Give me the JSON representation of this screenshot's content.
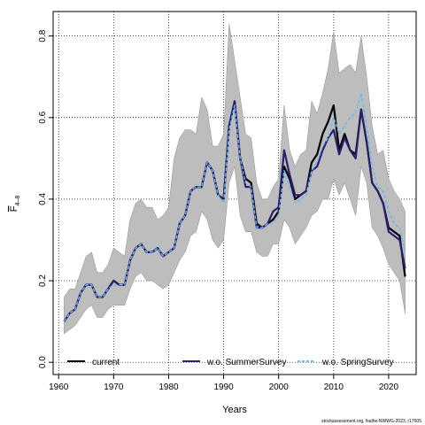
{
  "chart_data": {
    "type": "line",
    "title": "",
    "xlabel": "Years",
    "ylabel_main": "F",
    "ylabel_sub": "4–8",
    "xlim": [
      1959,
      2025
    ],
    "ylim": [
      -0.03,
      0.86
    ],
    "xticks": [
      1960,
      1970,
      1980,
      1990,
      2000,
      2010,
      2020
    ],
    "yticks": [
      0.0,
      0.2,
      0.4,
      0.6,
      0.8
    ],
    "ytick_labels": [
      "0.0",
      "0.2",
      "0.4",
      "0.6",
      "0.8"
    ],
    "grid": true,
    "legend_position": "bottom",
    "x": [
      1961,
      1962,
      1963,
      1964,
      1965,
      1966,
      1967,
      1968,
      1969,
      1970,
      1971,
      1972,
      1973,
      1974,
      1975,
      1976,
      1977,
      1978,
      1979,
      1980,
      1981,
      1982,
      1983,
      1984,
      1985,
      1986,
      1987,
      1988,
      1989,
      1990,
      1991,
      1992,
      1993,
      1994,
      1995,
      1996,
      1997,
      1998,
      1999,
      2000,
      2001,
      2002,
      2003,
      2004,
      2005,
      2006,
      2007,
      2008,
      2009,
      2010,
      2011,
      2012,
      2013,
      2014,
      2015,
      2016,
      2017,
      2018,
      2019,
      2020,
      2021,
      2022,
      2023
    ],
    "band": {
      "lower": [
        0.07,
        0.08,
        0.09,
        0.11,
        0.13,
        0.14,
        0.11,
        0.11,
        0.13,
        0.14,
        0.14,
        0.14,
        0.18,
        0.21,
        0.22,
        0.2,
        0.2,
        0.19,
        0.18,
        0.19,
        0.22,
        0.25,
        0.27,
        0.31,
        0.32,
        0.37,
        0.35,
        0.3,
        0.28,
        0.3,
        0.44,
        0.48,
        0.36,
        0.32,
        0.32,
        0.27,
        0.26,
        0.26,
        0.29,
        0.29,
        0.35,
        0.33,
        0.29,
        0.31,
        0.33,
        0.36,
        0.37,
        0.4,
        0.4,
        0.45,
        0.41,
        0.44,
        0.4,
        0.36,
        0.48,
        0.44,
        0.33,
        0.31,
        0.28,
        0.24,
        0.22,
        0.2,
        0.12
      ],
      "upper": [
        0.16,
        0.18,
        0.18,
        0.22,
        0.26,
        0.27,
        0.22,
        0.22,
        0.24,
        0.28,
        0.27,
        0.26,
        0.35,
        0.39,
        0.4,
        0.38,
        0.38,
        0.35,
        0.36,
        0.38,
        0.5,
        0.55,
        0.57,
        0.57,
        0.56,
        0.65,
        0.62,
        0.53,
        0.53,
        0.56,
        0.83,
        0.74,
        0.65,
        0.56,
        0.55,
        0.44,
        0.4,
        0.4,
        0.43,
        0.45,
        0.63,
        0.52,
        0.48,
        0.51,
        0.52,
        0.64,
        0.61,
        0.66,
        0.72,
        0.81,
        0.71,
        0.72,
        0.73,
        0.71,
        0.8,
        0.7,
        0.58,
        0.51,
        0.52,
        0.45,
        0.42,
        0.4,
        0.37
      ]
    },
    "series": [
      {
        "name": "current",
        "color": "#000000",
        "style": "solid",
        "values": [
          0.1,
          0.12,
          0.13,
          0.17,
          0.19,
          0.19,
          0.16,
          0.16,
          0.18,
          0.2,
          0.19,
          0.19,
          0.25,
          0.28,
          0.29,
          0.27,
          0.27,
          0.28,
          0.26,
          0.27,
          0.28,
          0.34,
          0.36,
          0.42,
          0.43,
          0.43,
          0.49,
          0.47,
          0.41,
          0.4,
          0.58,
          0.64,
          0.5,
          0.45,
          0.44,
          0.34,
          0.33,
          0.34,
          0.35,
          0.37,
          0.48,
          0.45,
          0.4,
          0.41,
          0.42,
          0.49,
          0.51,
          0.56,
          0.59,
          0.63,
          0.52,
          0.56,
          0.52,
          0.51,
          0.62,
          0.54,
          0.44,
          0.42,
          0.39,
          0.33,
          0.32,
          0.31,
          0.21
        ]
      },
      {
        "name": "w.o. SummerSurvey",
        "color": "#2a1f6e",
        "style": "solid",
        "values": [
          0.1,
          0.12,
          0.13,
          0.17,
          0.19,
          0.19,
          0.16,
          0.16,
          0.18,
          0.2,
          0.19,
          0.19,
          0.25,
          0.28,
          0.29,
          0.27,
          0.27,
          0.28,
          0.26,
          0.27,
          0.28,
          0.34,
          0.36,
          0.42,
          0.43,
          0.43,
          0.49,
          0.47,
          0.41,
          0.4,
          0.58,
          0.64,
          0.5,
          0.43,
          0.43,
          0.33,
          0.33,
          0.34,
          0.37,
          0.38,
          0.52,
          0.46,
          0.41,
          0.41,
          0.42,
          0.47,
          0.48,
          0.52,
          0.55,
          0.57,
          0.51,
          0.55,
          0.52,
          0.5,
          0.62,
          0.54,
          0.44,
          0.42,
          0.39,
          0.32,
          0.31,
          0.3,
          0.23
        ]
      },
      {
        "name": "w.o. SpringSurvey",
        "color": "#6ab8ef",
        "style": "dashed",
        "values": [
          0.1,
          0.12,
          0.13,
          0.17,
          0.19,
          0.19,
          0.16,
          0.16,
          0.18,
          0.19,
          0.19,
          0.19,
          0.25,
          0.28,
          0.29,
          0.27,
          0.27,
          0.28,
          0.26,
          0.27,
          0.28,
          0.34,
          0.36,
          0.42,
          0.43,
          0.43,
          0.49,
          0.47,
          0.41,
          0.39,
          0.57,
          0.63,
          0.5,
          0.44,
          0.43,
          0.33,
          0.33,
          0.34,
          0.34,
          0.36,
          0.47,
          0.43,
          0.39,
          0.4,
          0.41,
          0.47,
          0.49,
          0.53,
          0.55,
          0.6,
          0.56,
          0.58,
          0.6,
          0.61,
          0.66,
          0.58,
          0.48,
          0.43,
          0.42,
          0.37,
          0.34,
          0.33,
          0.27
        ]
      }
    ],
    "legend": [
      "current",
      "w.o. SummerSurvey",
      "w.o. SpringSurvey"
    ],
    "credit": "stockassessment.org, fsalhe-NWWG-2023, r17605"
  }
}
